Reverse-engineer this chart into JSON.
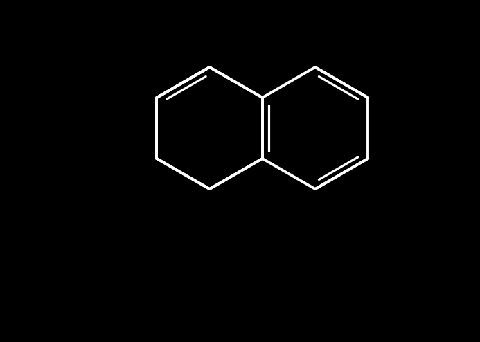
{
  "bg_color": "#000000",
  "bond_color": "#ffffff",
  "N_color": "#0000ff",
  "O_color": "#ff0000",
  "lw": 2.8,
  "lw_inner": 2.3,
  "figsize": [
    6.93,
    4.94
  ],
  "dpi": 100,
  "xlim": [
    0,
    693
  ],
  "ylim": [
    0,
    494
  ]
}
